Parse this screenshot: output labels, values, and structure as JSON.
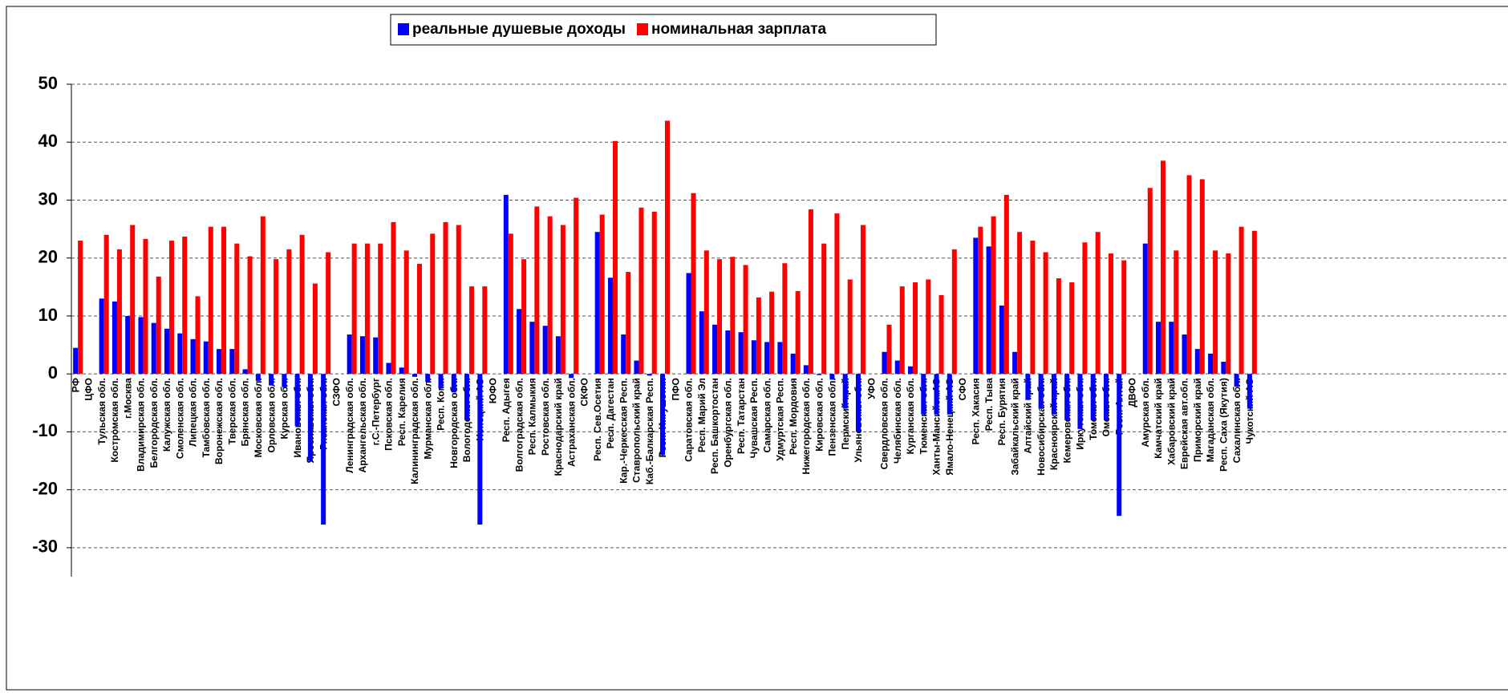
{
  "chart_data": {
    "type": "bar",
    "categories": [
      "РФ",
      "ЦФО",
      "Тульская обл.",
      "Костромская обл.",
      "г.Москва",
      "Владимирская обл.",
      "Белгородская обл.",
      "Калужская обл.",
      "Смоленская обл.",
      "Липецкая обл.",
      "Тамбовская обл.",
      "Воронежская обл.",
      "Тверская обл.",
      "Брянская обл.",
      "Московская обл.",
      "Орловская обл.",
      "Курская обл.",
      "Ивановская обл.",
      "Ярославская обл.",
      "Рязанская обл.",
      "СЗФО",
      "Ленинградская обл.",
      "Архангельская обл.",
      "г.С.-Петербург",
      "Псковская обл.",
      "Респ. Карелия",
      "Калининградская обл.",
      "Мурманская обл.",
      "Респ. Коми",
      "Новгородская обл.",
      "Вологодская обл.",
      "Ненецкий АО",
      "ЮФО",
      "Респ. Адыгея",
      "Волгоградская обл.",
      "Респ. Калмыкия",
      "Ростовская обл.",
      "Краснодарский край",
      "Астраханская обл.",
      "СКФО",
      "Респ. Сев.Осетия",
      "Респ. Дагестан",
      "Кар.-Черкесская Респ.",
      "Ставропольский край",
      "Каб.-Балкарская Респ.",
      "Респ. Ингушетия",
      "ПФО",
      "Саратовская обл.",
      "Респ. Марий Эл",
      "Респ. Башкортостан",
      "Оренбургская обл.",
      "Респ. Татарстан",
      "Чувашская Респ.",
      "Самарская обл.",
      "Удмуртская Респ.",
      "Респ. Мордовия",
      "Нижегородская обл.",
      "Кировская обл.",
      "Пензенская обл.",
      "Пермский край",
      "Ульяновская обл.",
      "УФО",
      "Свердловская обл.",
      "Челябинская обл.",
      "Курганская обл.",
      "Тюменская обл.",
      "Ханты-Мансийск.АО",
      "Ямало-Ненецкий АО",
      "СФО",
      "Респ. Хакасия",
      "Респ. Тыва",
      "Респ. Бурятия",
      "Забайкальский край",
      "Алтайский край",
      "Новосибирская обл.",
      "Красноярский край",
      "Кемеровская обл.",
      "Иркутская обл.",
      "Томская обл.",
      "Омская обл.",
      "Респ. Алтай",
      "ДВФО",
      "Амурская обл.",
      "Камчатский край",
      "Хабаровский край",
      "Еврейская авт.обл.",
      "Приморский край",
      "Магаданская обл.",
      "Респ. Саха (Якутия)",
      "Сахалинская обл.",
      "Чукотский АО"
    ],
    "series": [
      {
        "name": "реальные душевые доходы",
        "color": "#0000ff",
        "values": [
          4.5,
          null,
          13,
          12.5,
          10,
          9.8,
          8.8,
          7.8,
          7,
          6,
          5.6,
          4.3,
          4.3,
          0.8,
          -1.2,
          -2,
          -2.3,
          -9,
          -15,
          -26,
          null,
          6.8,
          6.5,
          6.3,
          1.9,
          1.1,
          -0.5,
          -1.4,
          -2.5,
          -3.2,
          -8,
          -26,
          null,
          30.9,
          11.2,
          9,
          8.3,
          6.5,
          -0.7,
          null,
          24.5,
          16.6,
          6.8,
          2.3,
          -0.3,
          -14,
          null,
          17.4,
          10.8,
          8.5,
          7.5,
          7.2,
          5.8,
          5.5,
          5.5,
          3.5,
          1.5,
          -0.2,
          -1,
          -6,
          -10,
          null,
          3.8,
          2.3,
          1.3,
          -7,
          -7,
          -7,
          null,
          23.5,
          22,
          11.8,
          3.8,
          -4.5,
          -6,
          -7,
          -8,
          -9.5,
          -8,
          -8,
          -24.5,
          null,
          22.5,
          9,
          9,
          6.8,
          4.3,
          3.5,
          2.1,
          -2.2,
          -6
        ]
      },
      {
        "name": "номинальная зарплата",
        "color": "#ff0000",
        "values": [
          23,
          null,
          24,
          21.5,
          25.7,
          23.3,
          16.8,
          23,
          23.7,
          13.4,
          25.4,
          25.4,
          22.5,
          20.3,
          27.2,
          19.8,
          21.5,
          24,
          15.6,
          21,
          null,
          22.5,
          22.5,
          22.5,
          26.2,
          21.3,
          19,
          24.2,
          26.2,
          25.7,
          15.1,
          15.1,
          null,
          24.2,
          19.8,
          28.9,
          27.2,
          25.7,
          30.4,
          null,
          27.5,
          40.2,
          17.6,
          28.7,
          28,
          43.7,
          null,
          31.2,
          21.3,
          19.8,
          20.2,
          18.8,
          13.2,
          14.2,
          19.1,
          14.3,
          28.4,
          22.5,
          27.7,
          16.3,
          25.7,
          null,
          8.5,
          15.1,
          15.8,
          16.3,
          13.6,
          21.5,
          null,
          25.4,
          27.2,
          30.9,
          24.5,
          23,
          21,
          16.5,
          15.8,
          22.7,
          24.5,
          20.8,
          19.6,
          null,
          32.1,
          36.8,
          21.3,
          34.3,
          33.6,
          21.3,
          20.8,
          25.4,
          24.7
        ]
      }
    ],
    "ylim": [
      -35,
      50
    ],
    "yticks": [
      -30,
      -20,
      -10,
      0,
      10,
      20,
      30,
      40,
      50
    ],
    "grid": true,
    "legend": "top"
  }
}
